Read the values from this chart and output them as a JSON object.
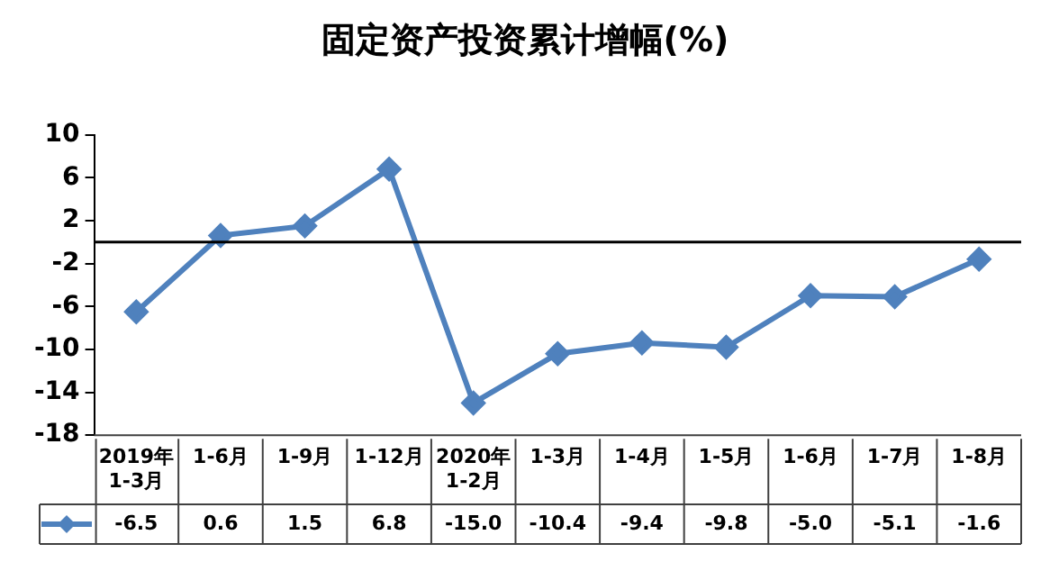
{
  "chart_data": {
    "type": "line",
    "title": "固定资产投资累计增幅(%)",
    "categories": [
      "2019年\n1-3月",
      "1-6月",
      "1-9月",
      "1-12月",
      "2020年\n1-2月",
      "1-3月",
      "1-4月",
      "1-5月",
      "1-6月",
      "1-7月",
      "1-8月"
    ],
    "series": [
      {
        "color": "#4f81bd",
        "values": [
          -6.5,
          0.6,
          1.5,
          6.8,
          -15.0,
          -10.4,
          -9.4,
          -9.8,
          -5.0,
          -5.1,
          -1.6
        ],
        "value_labels": [
          "-6.5",
          "0.6",
          "1.5",
          "6.8",
          "-15.0",
          "-10.4",
          "-9.4",
          "-9.8",
          "-5.0",
          "-5.1",
          "-1.6"
        ]
      }
    ],
    "ylim": [
      -18,
      10
    ],
    "yticks": [
      -18,
      -14,
      -10,
      -6,
      -2,
      2,
      6,
      10
    ],
    "ref_lines": [
      {
        "axis": "y",
        "value": 0,
        "color": "#000000"
      }
    ],
    "marker": "diamond",
    "line_style": "solid",
    "grid": false
  }
}
